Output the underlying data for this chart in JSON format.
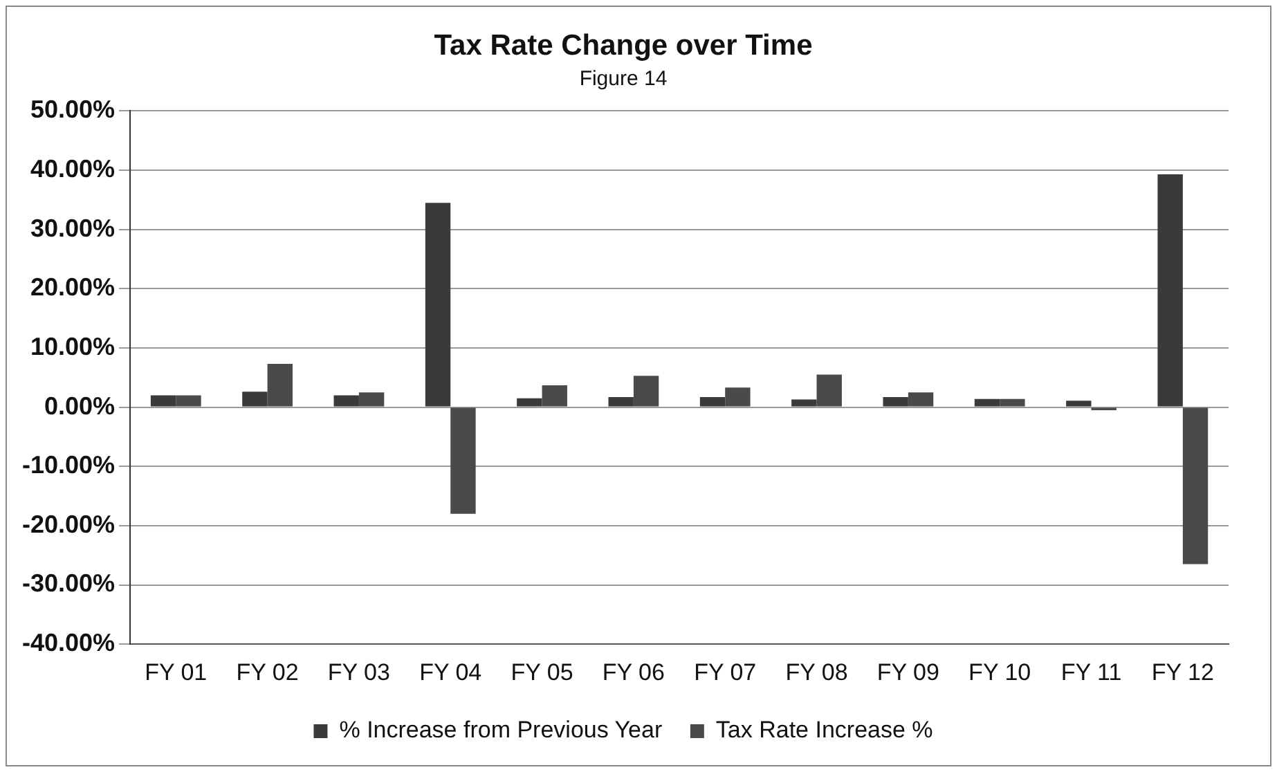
{
  "chart_data": {
    "type": "bar",
    "title": "Tax Rate Change over Time",
    "subtitle": "Figure 14",
    "categories": [
      "FY 01",
      "FY 02",
      "FY 03",
      "FY 04",
      "FY 05",
      "FY 06",
      "FY 07",
      "FY 08",
      "FY 09",
      "FY 10",
      "FY 11",
      "FY 12"
    ],
    "series": [
      {
        "name": "% Increase from Previous Year",
        "color": "#3a3a3a",
        "values": [
          2.0,
          2.6,
          2.0,
          34.5,
          1.5,
          1.7,
          1.7,
          1.3,
          1.7,
          1.4,
          1.1,
          39.3
        ]
      },
      {
        "name": "Tax Rate Increase %",
        "color": "#4a4a4a",
        "values": [
          2.0,
          7.3,
          2.5,
          -18.0,
          3.7,
          5.3,
          3.3,
          5.5,
          2.5,
          1.4,
          -0.5,
          -26.5
        ]
      }
    ],
    "ylim": [
      -40,
      50
    ],
    "yticks": [
      {
        "value": -40,
        "label": "-40.00%"
      },
      {
        "value": -30,
        "label": "-30.00%"
      },
      {
        "value": -20,
        "label": "-20.00%"
      },
      {
        "value": -10,
        "label": "-10.00%"
      },
      {
        "value": 0,
        "label": "0.00%"
      },
      {
        "value": 10,
        "label": "10.00%"
      },
      {
        "value": 20,
        "label": "20.00%"
      },
      {
        "value": 30,
        "label": "30.00%"
      },
      {
        "value": 40,
        "label": "40.00%"
      },
      {
        "value": 50,
        "label": "50.00%"
      }
    ],
    "grid": "y",
    "legend": "bottom"
  }
}
